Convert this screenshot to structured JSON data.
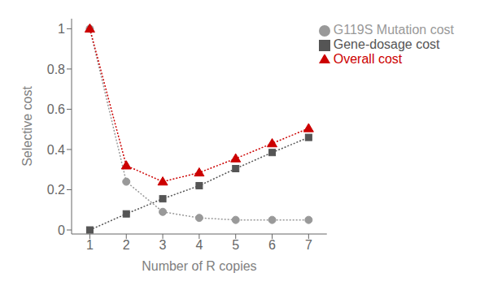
{
  "chart_data": {
    "type": "line",
    "x": [
      1,
      2,
      3,
      4,
      5,
      6,
      7
    ],
    "series": [
      {
        "name": "G119S Mutation cost",
        "color": "#999999",
        "marker": "circle",
        "line_style": "dotted",
        "values": [
          1.0,
          0.24,
          0.09,
          0.06,
          0.05,
          0.05,
          0.05
        ]
      },
      {
        "name": "Gene-dosage cost",
        "color": "#555555",
        "marker": "square",
        "line_style": "dotted",
        "values": [
          0.0,
          0.08,
          0.155,
          0.22,
          0.305,
          0.385,
          0.46
        ]
      },
      {
        "name": "Overall cost",
        "color": "#cc0000",
        "marker": "triangle",
        "line_style": "dotted",
        "values": [
          1.0,
          0.32,
          0.24,
          0.285,
          0.355,
          0.43,
          0.505
        ]
      }
    ],
    "xlabel": "Number of R copies",
    "ylabel": "Selective cost",
    "xlim": [
      0.5,
      7.5
    ],
    "ylim": [
      -0.02,
      1.05
    ],
    "xticks": [
      1,
      2,
      3,
      4,
      5,
      6,
      7
    ],
    "yticks": [
      0.0,
      0.2,
      0.4,
      0.6,
      0.8,
      1.0
    ],
    "grid": false,
    "legend": "upper right"
  }
}
